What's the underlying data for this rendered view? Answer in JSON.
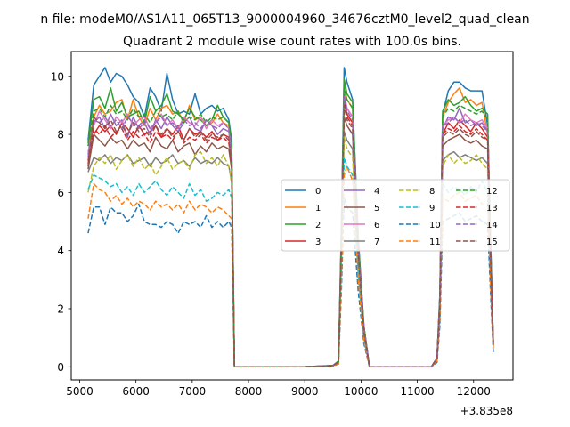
{
  "chart_data": {
    "type": "line",
    "suptitle": "n file: modeM0/AS1A11_065T13_9000004960_34676cztM0_level2_quad_clean",
    "title": "Quadrant 2 module wise count rates with 100.0s bins.",
    "xlabel": "",
    "ylabel": "",
    "x_offset_label": "+3.835e8",
    "xlim": [
      4850,
      12700
    ],
    "ylim": [
      -0.45,
      10.85
    ],
    "x_ticks": [
      5000,
      6000,
      7000,
      8000,
      9000,
      10000,
      11000,
      12000
    ],
    "y_ticks": [
      0,
      2,
      4,
      6,
      8,
      10
    ],
    "grid": false,
    "legend": {
      "placement": "center-right",
      "columns": 4
    },
    "x": [
      5150,
      5250,
      5350,
      5450,
      5550,
      5650,
      5750,
      5850,
      5950,
      6050,
      6150,
      6250,
      6350,
      6450,
      6550,
      6650,
      6750,
      6850,
      6950,
      7050,
      7150,
      7250,
      7350,
      7450,
      7550,
      7650,
      7700,
      7750,
      8000,
      8500,
      9000,
      9500,
      9600,
      9650,
      9700,
      9750,
      9850,
      9950,
      10050,
      10150,
      10500,
      11000,
      11200,
      11250,
      11350,
      11400,
      11450,
      11550,
      11650,
      11750,
      11850,
      11950,
      12050,
      12150,
      12250,
      12300,
      12350
    ],
    "series": [
      {
        "name": "0",
        "color": "#1f77b4",
        "dash": "solid",
        "values": [
          7.8,
          9.7,
          10.0,
          10.3,
          9.8,
          10.1,
          10.0,
          9.7,
          9.3,
          9.1,
          8.6,
          9.6,
          9.3,
          8.8,
          10.1,
          9.2,
          8.7,
          8.8,
          8.7,
          9.4,
          8.7,
          8.9,
          9.0,
          8.8,
          8.9,
          8.5,
          7.8,
          0,
          0,
          0,
          0,
          0.05,
          0.2,
          4.8,
          10.3,
          9.8,
          9.2,
          4.5,
          1.4,
          0,
          0,
          0,
          0,
          0,
          0.3,
          2.5,
          8.7,
          9.5,
          9.8,
          9.8,
          9.6,
          9.5,
          9.5,
          9.5,
          8.3,
          4.5,
          0.9
        ]
      },
      {
        "name": "1",
        "color": "#ff7f0e",
        "dash": "solid",
        "values": [
          7.6,
          8.6,
          9.0,
          8.7,
          8.8,
          9.1,
          9.2,
          8.5,
          9.2,
          8.6,
          8.3,
          8.9,
          8.5,
          8.9,
          9.0,
          8.7,
          8.8,
          8.4,
          9.0,
          8.5,
          8.6,
          8.3,
          8.4,
          8.7,
          8.4,
          8.3,
          7.6,
          0,
          0,
          0,
          0,
          0.04,
          0.18,
          4.4,
          9.8,
          9.2,
          8.9,
          4.3,
          1.4,
          0,
          0,
          0,
          0,
          0,
          0.3,
          2.4,
          8.6,
          9.1,
          9.4,
          9.6,
          9.1,
          9.2,
          9.0,
          9.1,
          8.0,
          4.2,
          0.8
        ]
      },
      {
        "name": "2",
        "color": "#2ca02c",
        "dash": "solid",
        "values": [
          7.7,
          9.2,
          9.3,
          8.9,
          9.6,
          8.8,
          9.1,
          8.6,
          8.7,
          8.8,
          8.4,
          9.3,
          8.8,
          9.0,
          9.4,
          8.8,
          8.7,
          8.5,
          8.9,
          8.6,
          8.5,
          8.3,
          8.5,
          9.0,
          8.6,
          8.4,
          7.7,
          0,
          0,
          0,
          0,
          0.04,
          0.19,
          4.6,
          9.9,
          9.4,
          9.1,
          4.4,
          1.4,
          0,
          0,
          0,
          0,
          0,
          0.3,
          2.4,
          8.8,
          9.2,
          9.0,
          9.1,
          9.3,
          9.0,
          8.8,
          8.9,
          8.7,
          4.4,
          0.85
        ]
      },
      {
        "name": "3",
        "color": "#d62728",
        "dash": "solid",
        "values": [
          7.0,
          8.0,
          8.3,
          8.1,
          8.3,
          8.0,
          8.4,
          8.2,
          7.9,
          8.3,
          8.0,
          8.1,
          8.3,
          7.9,
          8.2,
          8.0,
          8.3,
          7.8,
          8.2,
          8.0,
          8.1,
          7.9,
          8.1,
          7.8,
          8.0,
          7.9,
          7.0,
          0,
          0,
          0,
          0,
          0.04,
          0.17,
          4.2,
          9.2,
          8.7,
          8.4,
          4.0,
          1.3,
          0,
          0,
          0,
          0,
          0,
          0.3,
          2.2,
          8.0,
          8.4,
          8.2,
          8.5,
          8.3,
          8.1,
          8.4,
          8.2,
          7.9,
          4.0,
          0.8
        ]
      },
      {
        "name": "4",
        "color": "#9467bd",
        "dash": "solid",
        "values": [
          7.2,
          8.4,
          8.6,
          8.2,
          8.7,
          8.3,
          8.5,
          7.9,
          8.6,
          8.2,
          8.4,
          8.0,
          8.5,
          8.2,
          8.6,
          8.3,
          8.1,
          8.4,
          8.6,
          8.2,
          8.1,
          8.5,
          8.3,
          8.0,
          8.2,
          8.1,
          7.2,
          0,
          0,
          0,
          0,
          0.04,
          0.17,
          4.3,
          9.4,
          8.9,
          8.6,
          4.1,
          1.3,
          0,
          0,
          0,
          0,
          0,
          0.3,
          2.3,
          8.2,
          8.6,
          8.5,
          8.9,
          8.4,
          8.5,
          8.3,
          8.4,
          8.1,
          4.1,
          0.8
        ]
      },
      {
        "name": "5",
        "color": "#8c564b",
        "dash": "solid",
        "values": [
          6.8,
          8.0,
          7.8,
          7.6,
          7.9,
          7.7,
          7.8,
          7.5,
          7.8,
          7.6,
          7.7,
          7.4,
          7.9,
          7.6,
          7.5,
          7.8,
          7.4,
          7.6,
          7.7,
          7.3,
          7.6,
          7.4,
          7.7,
          7.5,
          7.6,
          7.5,
          6.8,
          0,
          0,
          0,
          0,
          0.04,
          0.16,
          4.0,
          8.6,
          8.3,
          8.0,
          3.8,
          1.2,
          0,
          0,
          0,
          0,
          0,
          0.3,
          2.1,
          7.6,
          7.8,
          7.9,
          8.0,
          7.8,
          7.7,
          7.8,
          7.6,
          7.5,
          3.8,
          0.75
        ]
      },
      {
        "name": "6",
        "color": "#e377c2",
        "dash": "solid",
        "values": [
          7.4,
          8.3,
          8.8,
          8.5,
          8.2,
          8.6,
          8.4,
          8.7,
          8.3,
          8.5,
          8.6,
          8.2,
          8.4,
          8.7,
          8.3,
          8.5,
          8.2,
          8.6,
          8.4,
          8.3,
          8.6,
          8.2,
          8.5,
          8.3,
          8.4,
          8.2,
          7.4,
          0,
          0,
          0,
          0,
          0.04,
          0.17,
          4.3,
          9.3,
          8.9,
          8.6,
          4.1,
          1.3,
          0,
          0,
          0,
          0,
          0,
          0.3,
          2.3,
          8.3,
          8.5,
          8.6,
          8.4,
          8.7,
          8.5,
          8.4,
          8.5,
          8.2,
          4.2,
          0.8
        ]
      },
      {
        "name": "7",
        "color": "#7f7f7f",
        "dash": "solid",
        "values": [
          6.7,
          7.2,
          7.1,
          7.3,
          7.0,
          7.2,
          7.1,
          7.3,
          7.0,
          7.1,
          7.2,
          6.9,
          7.2,
          7.0,
          7.1,
          7.3,
          7.0,
          7.1,
          6.9,
          7.2,
          7.0,
          7.1,
          7.0,
          7.2,
          7.0,
          6.9,
          6.4,
          0,
          0,
          0,
          0,
          0.03,
          0.15,
          3.7,
          8.1,
          7.8,
          7.5,
          3.6,
          1.1,
          0,
          0,
          0,
          0,
          0,
          0.25,
          2.0,
          7.1,
          7.3,
          7.4,
          7.2,
          7.3,
          7.2,
          7.1,
          7.2,
          7.0,
          3.6,
          0.7
        ]
      },
      {
        "name": "8",
        "color": "#bcbd22",
        "dash": "dashed",
        "values": [
          6.0,
          6.9,
          7.2,
          7.0,
          7.3,
          6.8,
          7.1,
          7.3,
          6.9,
          7.2,
          6.8,
          7.0,
          6.6,
          6.9,
          7.2,
          6.8,
          7.0,
          7.1,
          6.8,
          7.3,
          7.4,
          7.0,
          7.2,
          6.9,
          7.3,
          6.9,
          6.3,
          0,
          0,
          0,
          0,
          0.03,
          0.14,
          3.6,
          7.9,
          7.5,
          7.2,
          3.5,
          1.1,
          0,
          0,
          0,
          0,
          0,
          0.25,
          1.9,
          6.9,
          7.3,
          7.0,
          7.2,
          7.0,
          7.1,
          7.3,
          7.0,
          6.8,
          3.5,
          0.7
        ]
      },
      {
        "name": "9",
        "color": "#17becf",
        "dash": "dashed",
        "values": [
          6.1,
          6.6,
          6.5,
          6.4,
          6.2,
          6.3,
          6.0,
          6.2,
          5.9,
          6.3,
          6.0,
          6.2,
          6.4,
          6.1,
          5.9,
          6.2,
          6.0,
          5.8,
          6.3,
          5.9,
          6.1,
          5.7,
          5.8,
          6.0,
          5.9,
          6.1,
          5.8,
          0,
          0,
          0,
          0,
          0.03,
          0.13,
          3.3,
          7.2,
          6.9,
          6.6,
          3.2,
          1.0,
          0,
          0,
          0,
          0,
          0,
          0.2,
          1.7,
          6.3,
          6.0,
          6.2,
          6.1,
          5.9,
          6.2,
          6.0,
          6.4,
          6.0,
          3.2,
          0.65
        ]
      },
      {
        "name": "10",
        "color": "#1f77b4",
        "dash": "dashed",
        "values": [
          4.6,
          5.5,
          5.5,
          4.9,
          5.5,
          5.3,
          5.3,
          5.0,
          5.2,
          5.6,
          5.0,
          4.9,
          4.9,
          4.8,
          5.0,
          4.9,
          4.6,
          5.0,
          4.9,
          5.0,
          4.8,
          5.2,
          4.8,
          5.0,
          4.8,
          5.0,
          4.8,
          0,
          0,
          0,
          0,
          0.02,
          0.1,
          2.6,
          5.8,
          5.5,
          5.3,
          2.6,
          0.8,
          0,
          0,
          0,
          0,
          0,
          0.15,
          1.4,
          5.0,
          5.1,
          5.2,
          5.3,
          5.0,
          5.1,
          5.2,
          5.0,
          4.9,
          2.6,
          0.5
        ]
      },
      {
        "name": "11",
        "color": "#ff7f0e",
        "dash": "dashed",
        "values": [
          5.1,
          6.3,
          6.1,
          6.0,
          5.7,
          5.9,
          5.6,
          5.8,
          5.5,
          5.7,
          5.6,
          5.4,
          5.7,
          5.5,
          5.6,
          5.4,
          5.6,
          5.3,
          5.7,
          5.4,
          5.6,
          5.5,
          5.3,
          5.5,
          5.4,
          5.2,
          5.1,
          0,
          0,
          0,
          0,
          0.02,
          0.11,
          3.0,
          6.6,
          6.9,
          6.4,
          3.0,
          0.9,
          0,
          0,
          0,
          0,
          0,
          0.2,
          1.6,
          5.8,
          5.7,
          5.9,
          6.0,
          5.7,
          5.8,
          5.9,
          5.6,
          5.6,
          2.9,
          0.6
        ]
      },
      {
        "name": "12",
        "color": "#2ca02c",
        "dash": "dashed",
        "values": [
          7.6,
          8.8,
          8.9,
          8.6,
          9.0,
          8.7,
          8.8,
          8.5,
          8.9,
          8.6,
          8.7,
          8.4,
          8.8,
          8.6,
          8.7,
          8.5,
          8.8,
          8.4,
          8.6,
          8.5,
          8.7,
          8.4,
          8.6,
          8.5,
          8.6,
          8.4,
          7.6,
          0,
          0,
          0,
          0,
          0.04,
          0.18,
          4.5,
          9.6,
          9.2,
          8.9,
          4.3,
          1.4,
          0,
          0,
          0,
          0,
          0,
          0.3,
          2.4,
          8.6,
          8.9,
          8.8,
          9.0,
          8.9,
          8.8,
          8.7,
          8.8,
          8.5,
          4.3,
          0.85
        ]
      },
      {
        "name": "13",
        "color": "#d62728",
        "dash": "dashed",
        "values": [
          7.1,
          8.2,
          8.0,
          8.3,
          7.9,
          8.1,
          8.2,
          7.8,
          8.1,
          7.9,
          8.0,
          7.7,
          8.1,
          7.9,
          8.0,
          7.8,
          8.1,
          7.7,
          7.9,
          7.8,
          8.0,
          7.7,
          7.9,
          7.8,
          7.9,
          7.7,
          7.0,
          0,
          0,
          0,
          0,
          0.04,
          0.17,
          4.2,
          9.1,
          8.6,
          8.3,
          4.0,
          1.3,
          0,
          0,
          0,
          0,
          0,
          0.3,
          2.2,
          8.0,
          8.2,
          8.1,
          8.3,
          8.1,
          8.0,
          8.2,
          8.0,
          7.8,
          4.0,
          0.8
        ]
      },
      {
        "name": "14",
        "color": "#9467bd",
        "dash": "dashed",
        "values": [
          7.3,
          8.5,
          8.4,
          8.6,
          8.3,
          8.5,
          8.2,
          8.6,
          8.4,
          8.3,
          8.5,
          8.2,
          8.4,
          8.6,
          8.3,
          8.4,
          8.2,
          8.5,
          8.3,
          8.4,
          8.2,
          8.5,
          8.3,
          8.2,
          8.4,
          8.2,
          7.3,
          0,
          0,
          0,
          0,
          0.04,
          0.17,
          4.3,
          9.3,
          8.8,
          8.5,
          4.1,
          1.3,
          0,
          0,
          0,
          0,
          0,
          0.3,
          2.3,
          8.3,
          8.4,
          8.6,
          8.4,
          8.5,
          8.3,
          8.4,
          8.3,
          8.1,
          4.1,
          0.8
        ]
      },
      {
        "name": "15",
        "color": "#8c564b",
        "dash": "dashed",
        "values": [
          6.9,
          8.6,
          8.4,
          8.2,
          8.5,
          8.1,
          8.3,
          8.0,
          8.4,
          8.1,
          8.2,
          7.9,
          8.3,
          8.0,
          8.2,
          7.9,
          8.1,
          7.8,
          8.2,
          7.9,
          8.1,
          7.8,
          8.0,
          7.9,
          8.0,
          7.8,
          7.0,
          0,
          0,
          0,
          0,
          0.04,
          0.16,
          4.1,
          9.0,
          8.5,
          8.2,
          3.9,
          1.2,
          0,
          0,
          0,
          0,
          0,
          0.3,
          2.2,
          7.9,
          8.1,
          8.0,
          8.2,
          8.0,
          7.9,
          8.1,
          7.9,
          7.8,
          3.9,
          0.75
        ]
      }
    ]
  }
}
